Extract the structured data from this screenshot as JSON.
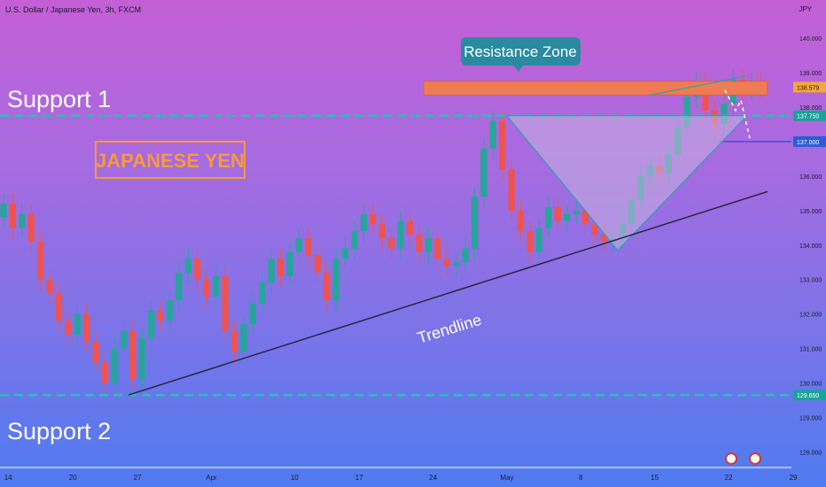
{
  "header": {
    "symbol_title": "U.S. Dollar / Japanese Yen, 3h, FXCM",
    "currency": "JPY"
  },
  "annotations": {
    "resistance_label": "Resistance Zone",
    "support1_label": "Support 1",
    "support2_label": "Support 2",
    "trendline_label": "Trendline",
    "japanese_yen_label": "JAPANESE YEN"
  },
  "price_tags": {
    "current": "138.579",
    "level_137750": "137.750",
    "level_137000": "137.000",
    "level_129650": "129.650"
  },
  "colors": {
    "bull": "#26a69a",
    "bear": "#ef5350",
    "resistance_fill": "#f07c55",
    "dashed_line": "#2bc0b0",
    "trendline": "#2a2540",
    "tag_orange": "#f7a738",
    "tag_teal": "#1aa39a",
    "tag_blue": "#2f5bd8",
    "label_teal": "#2a8aa0",
    "yen_orange": "#f79a3a"
  },
  "chart_data": {
    "type": "candlestick",
    "title": "U.S. Dollar / Japanese Yen, 3h, FXCM",
    "ylabel": "JPY",
    "ylim": [
      127.55,
      140.9
    ],
    "y_ticks": [
      "140.000",
      "139.000",
      "138.000",
      "136.000",
      "135.000",
      "134.000",
      "133.000",
      "132.000",
      "131.000",
      "130.000",
      "129.000",
      "128.000"
    ],
    "x_ticks": [
      "14",
      "20",
      "27",
      "Apr",
      "10",
      "17",
      "24",
      "May",
      "8",
      "15",
      "22",
      "29"
    ],
    "x_tick_positions": [
      0.5,
      7.5,
      14.5,
      22.5,
      31.5,
      38.5,
      46.5,
      54.5,
      62.5,
      70.5,
      78.5,
      85.5
    ],
    "closes": [
      135.2,
      134.5,
      134.9,
      134.1,
      133.0,
      132.6,
      131.8,
      131.4,
      132.0,
      131.2,
      130.6,
      130.0,
      131.0,
      131.5,
      130.1,
      131.3,
      132.1,
      131.8,
      132.4,
      133.2,
      133.6,
      133.0,
      132.5,
      133.1,
      131.5,
      130.9,
      131.7,
      132.3,
      132.9,
      133.6,
      133.1,
      133.8,
      134.2,
      133.7,
      133.2,
      132.4,
      133.6,
      133.9,
      134.4,
      134.9,
      134.6,
      134.2,
      133.9,
      134.7,
      134.3,
      133.8,
      134.2,
      133.6,
      133.4,
      133.5,
      133.9,
      135.4,
      136.8,
      137.6,
      136.2,
      135.0,
      134.4,
      133.8,
      134.5,
      135.1,
      134.7,
      134.9,
      135.0,
      134.6,
      134.3,
      134.1,
      134.2,
      134.6,
      135.3,
      136.0,
      136.3,
      136.1,
      136.6,
      137.4,
      138.3,
      138.7,
      137.9,
      137.5,
      138.1,
      138.8,
      138.5,
      138.7,
      138.579
    ],
    "levels": [
      {
        "name": "Resistance Zone",
        "from": 138.35,
        "to": 138.75
      },
      {
        "name": "Support 1",
        "value": 137.75
      },
      {
        "name": "Support 2",
        "value": 129.65
      },
      {
        "name": "blue line",
        "value": 137.0
      }
    ],
    "trendline": {
      "from": [
        13.5,
        129.65
      ],
      "to": [
        83.5,
        135.55
      ]
    },
    "triangle": [
      [
        54.5,
        137.75
      ],
      [
        66.5,
        133.85
      ],
      [
        80.5,
        137.75
      ]
    ],
    "grid": false,
    "legend": "none"
  }
}
